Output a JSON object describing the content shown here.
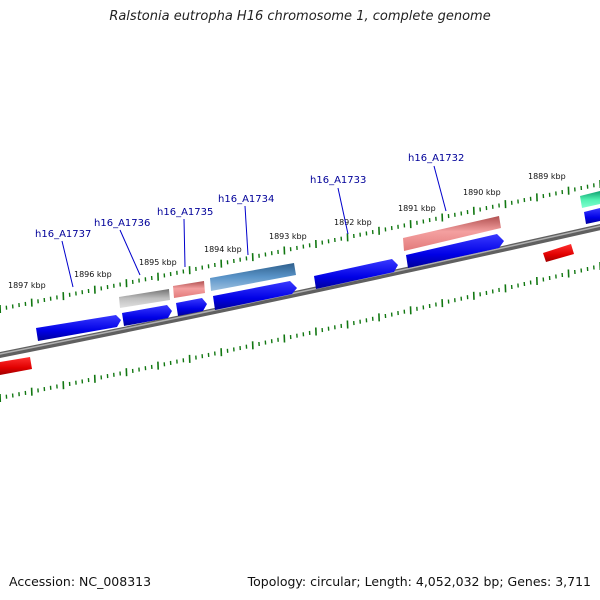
{
  "title": "Ralstonia eutropha H16 chromosome 1, complete genome",
  "footer": {
    "accession": "Accession: NC_008313",
    "summary": "Topology: circular; Length: 4,052,032 bp; Genes: 3,711"
  },
  "kbp_labels": [
    "1897 kbp",
    "1896 kbp",
    "1895 kbp",
    "1894 kbp",
    "1893 kbp",
    "1892 kbp",
    "1891 kbp",
    "1890 kbp",
    "1889 kbp"
  ],
  "gene_labels": [
    "h16_A1737",
    "h16_A1736",
    "h16_A1735",
    "h16_A1734",
    "h16_A1733",
    "h16_A1732"
  ],
  "colors": {
    "backbone": "#888888",
    "cds": "#0000e0",
    "pseudo": "#e87878",
    "rrna": "#4a84b8",
    "grey": "#a8a8a8",
    "red": "#e00000",
    "teal": "#20d890",
    "tick": "#117711",
    "label": "#000099"
  }
}
